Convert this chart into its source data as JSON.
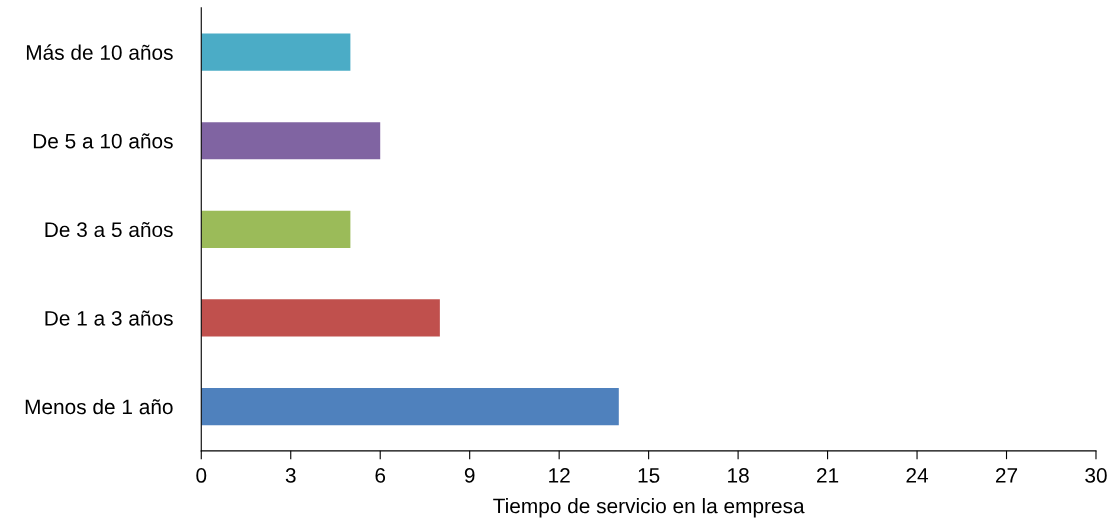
{
  "chart_data": {
    "type": "bar",
    "orientation": "horizontal",
    "xlabel": "Tiempo de servicio en la empresa",
    "categories": [
      "Más de 10 años",
      "De 5 a 10 años",
      "De 3 a 5 años",
      "De 1 a 3 años",
      "Menos de 1 año"
    ],
    "values": [
      5,
      6,
      5,
      8,
      14
    ],
    "colors": [
      "#4bacc6",
      "#8064a2",
      "#9bbb59",
      "#c0504d",
      "#4f81bd"
    ],
    "xlim": [
      0,
      30
    ],
    "xticks": [
      0,
      3,
      6,
      9,
      12,
      15,
      18,
      21,
      24,
      27,
      30
    ],
    "grid": false,
    "legend": false
  }
}
